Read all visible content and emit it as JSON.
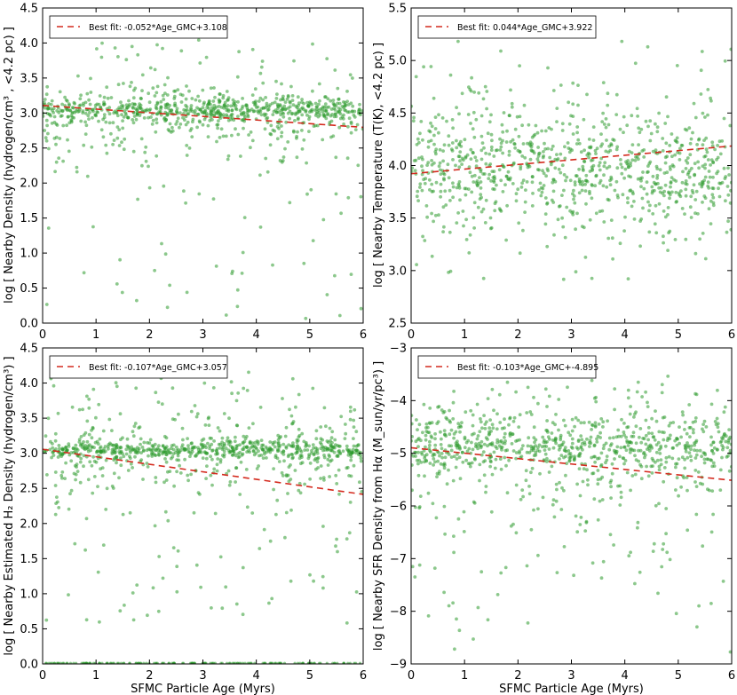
{
  "chart_data": [
    {
      "type": "scatter",
      "xlabel": "",
      "ylabel": "log [ Nearby Density (hydrogen/cm³ , <4.2 pc) ]",
      "xlim": [
        0,
        6
      ],
      "ylim": [
        0,
        4.5
      ],
      "xticks": [
        "0",
        "1",
        "2",
        "3",
        "4",
        "5",
        "6"
      ],
      "yticks": [
        "0.0",
        "0.5",
        "1.0",
        "1.5",
        "2.0",
        "2.5",
        "3.0",
        "3.5",
        "4.0",
        "4.5"
      ],
      "legend": "Best fit: -0.052*Age_GMC+3.108",
      "legend_position": "top-left",
      "fit": {
        "slope": -0.052,
        "intercept": 3.108
      },
      "point_color": "#2e9a2e",
      "fit_color": "#d42a1e",
      "points": {
        "count": 900,
        "core_y": 3.05,
        "core_width": 0.09,
        "spread_y": 0.55,
        "scatter_max": 4.2,
        "scatter_min": 0.05
      }
    },
    {
      "type": "scatter",
      "xlabel": "",
      "ylabel": "log [ Nearby Temperature (T(K), <4.2 pc) ]",
      "xlim": [
        0,
        6
      ],
      "ylim": [
        2.5,
        5.5
      ],
      "xticks": [
        "0",
        "1",
        "2",
        "3",
        "4",
        "5",
        "6"
      ],
      "yticks": [
        "2.5",
        "3.0",
        "3.5",
        "4.0",
        "4.5",
        "5.0",
        "5.5"
      ],
      "legend": "Best fit: 0.044*Age_GMC+3.922",
      "legend_position": "top-left",
      "fit": {
        "slope": 0.044,
        "intercept": 3.922
      },
      "point_color": "#2e9a2e",
      "fit_color": "#d42a1e",
      "points": {
        "count": 900,
        "core_y": 4.0,
        "core_width": 0.3,
        "spread_y": 0.35,
        "scatter_max": 5.2,
        "scatter_min": 2.9
      }
    },
    {
      "type": "scatter",
      "xlabel": "SFMC Particle Age (Myrs)",
      "ylabel": "log [ Nearby Estimated H₂ Density (hydrogen/cm³) ]",
      "xlim": [
        0,
        6
      ],
      "ylim": [
        0,
        4.5
      ],
      "xticks": [
        "0",
        "1",
        "2",
        "3",
        "4",
        "5",
        "6"
      ],
      "yticks": [
        "0.0",
        "0.5",
        "1.0",
        "1.5",
        "2.0",
        "2.5",
        "3.0",
        "3.5",
        "4.0",
        "4.5"
      ],
      "legend": "Best fit: -0.107*Age_GMC+3.057",
      "legend_position": "top-left",
      "fit": {
        "slope": -0.107,
        "intercept": 3.057
      },
      "point_color": "#2e9a2e",
      "fit_color": "#d42a1e",
      "points": {
        "count": 900,
        "core_y": 3.05,
        "core_width": 0.07,
        "spread_y": 0.6,
        "scatter_max": 4.2,
        "scatter_min": 0.5,
        "floor_y": 0.0
      }
    },
    {
      "type": "scatter",
      "xlabel": "SFMC Particle Age (Myrs)",
      "ylabel": "log [ Nearby SFR Density from Hα (M_sun/yr/pc³) ]",
      "xlim": [
        0,
        6
      ],
      "ylim": [
        -9,
        -3
      ],
      "xticks": [
        "0",
        "1",
        "2",
        "3",
        "4",
        "5",
        "6"
      ],
      "yticks": [
        "−9",
        "−8",
        "−7",
        "−6",
        "−5",
        "−4",
        "−3"
      ],
      "legend": "Best fit: -0.103*Age_GMC+-4.895",
      "legend_position": "top-left",
      "fit": {
        "slope": -0.103,
        "intercept": -4.895
      },
      "point_color": "#2e9a2e",
      "fit_color": "#d42a1e",
      "points": {
        "count": 900,
        "core_y": -4.85,
        "core_width": 0.25,
        "spread_y": 1.1,
        "scatter_max": -3.5,
        "scatter_min": -8.8
      }
    }
  ]
}
